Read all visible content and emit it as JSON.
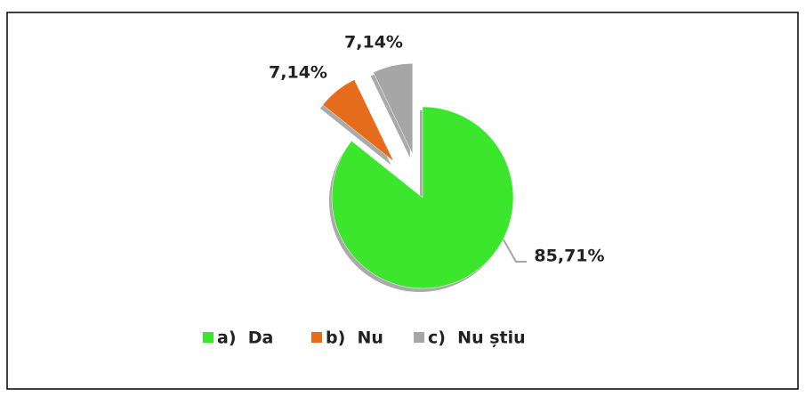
{
  "chart_data": {
    "type": "pie",
    "categories": [
      "a)  Da",
      "b)  Nu",
      "c)  Nu știu"
    ],
    "values": [
      85.71,
      7.14,
      7.14
    ],
    "value_labels": [
      "85,71%",
      "7,14%",
      "7,14%"
    ],
    "colors": [
      "#3ce62c",
      "#e46c1a",
      "#a6a6a6"
    ],
    "legend": "bottom"
  }
}
